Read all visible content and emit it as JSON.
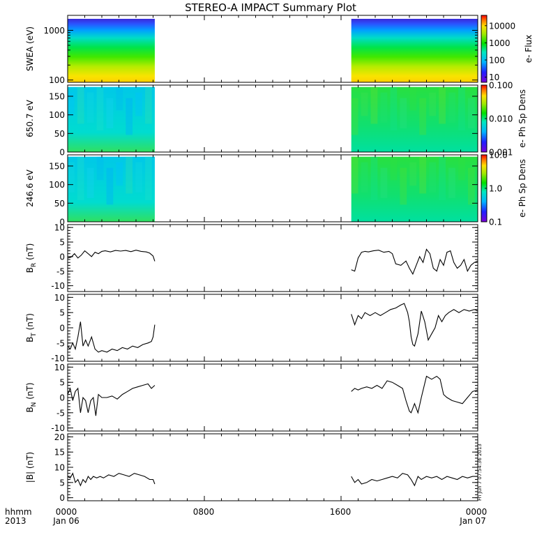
{
  "chart_data": [
    {
      "type": "heatmap",
      "title": "STEREO-A IMPACT Summary Plot",
      "ylabel": "SWEA (eV)",
      "yscale": "log",
      "ylim": [
        90,
        2000
      ],
      "yticks": [
        {
          "v": 100,
          "label": "100"
        },
        {
          "v": 1000,
          "label": "1000"
        }
      ],
      "colorbar": {
        "label": "e- Flux",
        "scale": "log",
        "range": [
          5,
          40000
        ],
        "ticks": [
          {
            "v": 10,
            "label": "10"
          },
          {
            "v": 100,
            "label": "100"
          },
          {
            "v": 1000,
            "label": "1000"
          },
          {
            "v": 10000,
            "label": "10000"
          }
        ]
      },
      "data_intervals_hours": [
        [
          0,
          5.1
        ],
        [
          16.6,
          24
        ]
      ]
    },
    {
      "type": "heatmap",
      "ylabel": "650.7 eV",
      "ylim": [
        0,
        180
      ],
      "yticks": [
        {
          "v": 0,
          "label": "0"
        },
        {
          "v": 50,
          "label": "50"
        },
        {
          "v": 100,
          "label": "100"
        },
        {
          "v": 150,
          "label": "150"
        }
      ],
      "colorbar": {
        "label": "e- Ph Sp Dens",
        "scale": "log",
        "range": [
          0.001,
          0.1
        ],
        "ticks": [
          {
            "v": 0.001,
            "label": "0.001"
          },
          {
            "v": 0.01,
            "label": "0.010"
          },
          {
            "v": 0.1,
            "label": "0.100"
          }
        ]
      },
      "data_intervals_hours": [
        [
          0,
          5.1
        ],
        [
          16.6,
          24
        ]
      ]
    },
    {
      "type": "heatmap",
      "ylabel": "246.6 eV",
      "ylim": [
        0,
        180
      ],
      "yticks": [
        {
          "v": 0,
          "label": "0"
        },
        {
          "v": 50,
          "label": "50"
        },
        {
          "v": 100,
          "label": "100"
        },
        {
          "v": 150,
          "label": "150"
        }
      ],
      "colorbar": {
        "label": "e- Ph Sp Dens",
        "scale": "log",
        "range": [
          0.1,
          10
        ],
        "ticks": [
          {
            "v": 0.1,
            "label": "0.1"
          },
          {
            "v": 1,
            "label": "1.0"
          },
          {
            "v": 10,
            "label": "10.0"
          }
        ]
      },
      "data_intervals_hours": [
        [
          0,
          5.1
        ],
        [
          16.6,
          24
        ]
      ]
    },
    {
      "type": "line",
      "ylabel": "B_R (nT)",
      "ylim": [
        -12,
        11
      ],
      "yticks": [
        -10,
        -5,
        0,
        5,
        10
      ],
      "series": [
        {
          "x": [
            0.0,
            0.2,
            0.4,
            0.6,
            0.8,
            1.0,
            1.2,
            1.4,
            1.6,
            1.8,
            2.0,
            2.2,
            2.5,
            2.8,
            3.1,
            3.4,
            3.7,
            4.0,
            4.3,
            4.6,
            4.8,
            5.0,
            5.1
          ],
          "y": [
            -0.5,
            -0.2,
            1,
            -0.5,
            0.5,
            2,
            1,
            0,
            1.5,
            1,
            1.8,
            2,
            1.6,
            2.1,
            1.9,
            2.1,
            1.7,
            2.2,
            1.8,
            1.6,
            1.2,
            0.2,
            -1.6
          ]
        },
        {
          "x": [
            16.6,
            16.8,
            17.0,
            17.2,
            17.4,
            17.6,
            17.9,
            18.2,
            18.5,
            18.8,
            19.0,
            19.2,
            19.5,
            19.8,
            20.0,
            20.2,
            20.4,
            20.6,
            20.8,
            21.0,
            21.2,
            21.4,
            21.6,
            21.8,
            22.0,
            22.2,
            22.4,
            22.6,
            22.8,
            23.0,
            23.2,
            23.4,
            23.6,
            23.8,
            24.0
          ],
          "y": [
            -4.5,
            -5,
            -0.5,
            1.5,
            1.8,
            1.6,
            2,
            2.2,
            1.5,
            1.8,
            1,
            -2.5,
            -3,
            -1.5,
            -4,
            -6,
            -3,
            0,
            -2,
            2.5,
            1,
            -4,
            -5,
            -1,
            -3,
            1.5,
            2,
            -2,
            -4,
            -3,
            -1,
            -5,
            -3,
            -2,
            -1.5
          ]
        }
      ]
    },
    {
      "type": "line",
      "ylabel": "B_T (nT)",
      "ylim": [
        -11,
        11
      ],
      "yticks": [
        -10,
        -5,
        0,
        5,
        10
      ],
      "series": [
        {
          "x": [
            0.0,
            0.15,
            0.3,
            0.45,
            0.6,
            0.75,
            0.9,
            1.05,
            1.2,
            1.4,
            1.6,
            1.8,
            2.0,
            2.3,
            2.6,
            2.9,
            3.2,
            3.5,
            3.8,
            4.1,
            4.4,
            4.7,
            4.9,
            5.0,
            5.1
          ],
          "y": [
            -6,
            -7,
            -5,
            -7,
            -3,
            2,
            -6,
            -4,
            -6,
            -3,
            -7,
            -8,
            -7.5,
            -8,
            -7,
            -7.5,
            -6.5,
            -7,
            -6,
            -6.5,
            -5.5,
            -5,
            -4.5,
            -3,
            1
          ]
        },
        {
          "x": [
            16.6,
            16.8,
            17.0,
            17.2,
            17.4,
            17.7,
            18.0,
            18.3,
            18.6,
            18.9,
            19.2,
            19.5,
            19.7,
            19.9,
            20.0,
            20.1,
            20.2,
            20.3,
            20.5,
            20.7,
            20.9,
            21.1,
            21.3,
            21.5,
            21.7,
            21.9,
            22.1,
            22.3,
            22.6,
            22.9,
            23.2,
            23.5,
            23.8,
            24.0
          ],
          "y": [
            4.5,
            1,
            4,
            3,
            5,
            4,
            5,
            4,
            5,
            6,
            6.5,
            7.5,
            8,
            5,
            2,
            -3,
            -5.5,
            -6,
            -2,
            5.5,
            2,
            -4,
            -2,
            0,
            4,
            2,
            4,
            5,
            6,
            5,
            6,
            5.5,
            6,
            5.5
          ]
        }
      ]
    },
    {
      "type": "line",
      "ylabel": "B_N (nT)",
      "ylim": [
        -11,
        11
      ],
      "yticks": [
        -10,
        -5,
        0,
        5,
        10
      ],
      "series": [
        {
          "x": [
            0.0,
            0.15,
            0.3,
            0.45,
            0.6,
            0.75,
            0.9,
            1.05,
            1.2,
            1.35,
            1.5,
            1.65,
            1.8,
            2.0,
            2.3,
            2.6,
            2.9,
            3.2,
            3.5,
            3.8,
            4.1,
            4.4,
            4.7,
            4.9,
            5.1
          ],
          "y": [
            1,
            3,
            -1,
            2,
            3,
            -5,
            0,
            -1,
            -5,
            -1,
            0,
            -6,
            1,
            0,
            0,
            0.5,
            -0.5,
            1,
            2,
            3,
            3.5,
            4,
            4.5,
            3,
            4
          ]
        },
        {
          "x": [
            16.6,
            16.8,
            17.0,
            17.2,
            17.5,
            17.8,
            18.1,
            18.4,
            18.7,
            19.0,
            19.3,
            19.6,
            19.8,
            20.0,
            20.1,
            20.3,
            20.5,
            20.7,
            21.0,
            21.3,
            21.6,
            21.8,
            22.0,
            22.2,
            22.5,
            22.8,
            23.1,
            23.4,
            23.7,
            24.0
          ],
          "y": [
            2,
            3,
            2.5,
            3,
            3.5,
            3,
            4,
            3,
            5.5,
            5,
            4,
            3,
            -1,
            -4.5,
            -5,
            -2,
            -5,
            0,
            7,
            6,
            7,
            6,
            1,
            0,
            -1,
            -1.5,
            -2,
            0,
            2,
            2.5
          ]
        }
      ]
    },
    {
      "type": "line",
      "ylabel": "|B| (nT)",
      "ylim": [
        -1,
        21
      ],
      "yticks": [
        0,
        5,
        10,
        15,
        20
      ],
      "series": [
        {
          "x": [
            0.0,
            0.15,
            0.3,
            0.45,
            0.6,
            0.75,
            0.9,
            1.05,
            1.2,
            1.35,
            1.5,
            1.7,
            1.9,
            2.1,
            2.4,
            2.7,
            3.0,
            3.3,
            3.6,
            3.9,
            4.2,
            4.5,
            4.8,
            5.0,
            5.1
          ],
          "y": [
            7,
            6.5,
            8,
            5,
            6,
            4,
            6,
            5,
            7,
            6,
            7,
            6.5,
            7,
            6.5,
            7.5,
            7,
            8,
            7.5,
            7,
            8,
            7.5,
            7,
            6,
            6,
            4.5
          ]
        },
        {
          "x": [
            16.6,
            16.8,
            17.0,
            17.2,
            17.5,
            17.8,
            18.1,
            18.4,
            18.7,
            19.0,
            19.3,
            19.6,
            19.9,
            20.1,
            20.3,
            20.5,
            20.7,
            21.0,
            21.3,
            21.6,
            21.9,
            22.2,
            22.5,
            22.8,
            23.1,
            23.4,
            23.7,
            24.0
          ],
          "y": [
            7,
            5,
            6,
            4.5,
            5,
            6,
            5.5,
            6,
            6.5,
            7,
            6.5,
            8,
            7.5,
            6,
            4,
            7,
            6,
            7,
            6.5,
            7,
            6,
            7,
            6.5,
            6,
            7,
            6.5,
            7,
            7
          ]
        }
      ]
    }
  ],
  "time_axis": {
    "row_label_top": "hhmm",
    "row_label_bottom": "2013",
    "range_hours": [
      0,
      24
    ],
    "ticks": [
      {
        "hour": 0,
        "top": "0000",
        "bottom": "Jan 06"
      },
      {
        "hour": 8,
        "top": "0800",
        "bottom": ""
      },
      {
        "hour": 16,
        "top": "1600",
        "bottom": ""
      },
      {
        "hour": 24,
        "top": "0000",
        "bottom": "Jan 07"
      }
    ]
  },
  "creation_stamp": "Fri Jun  7 07:54:36 2013"
}
